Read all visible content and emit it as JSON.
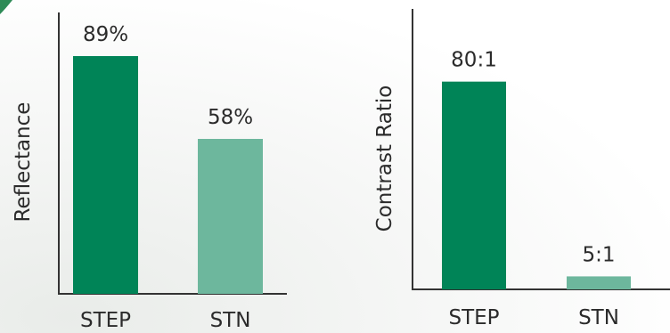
{
  "chart_data": [
    {
      "type": "bar",
      "title": "",
      "xlabel": "",
      "ylabel": "Reflectance",
      "categories": [
        "STEP",
        "STN"
      ],
      "values": [
        89,
        58
      ],
      "data_labels": [
        "89%",
        "58%"
      ],
      "colors": [
        "#008457",
        "#6db79d"
      ],
      "ylim": [
        0,
        100
      ],
      "grid": false,
      "legend": "none"
    },
    {
      "type": "bar",
      "title": "",
      "xlabel": "",
      "ylabel": "Contrast Ratio",
      "categories": [
        "STEP",
        "STN"
      ],
      "values": [
        80,
        5
      ],
      "data_labels": [
        "80:1",
        "5:1"
      ],
      "colors": [
        "#008457",
        "#6db79d"
      ],
      "ylim": [
        0,
        108
      ],
      "grid": false,
      "legend": "none"
    }
  ]
}
